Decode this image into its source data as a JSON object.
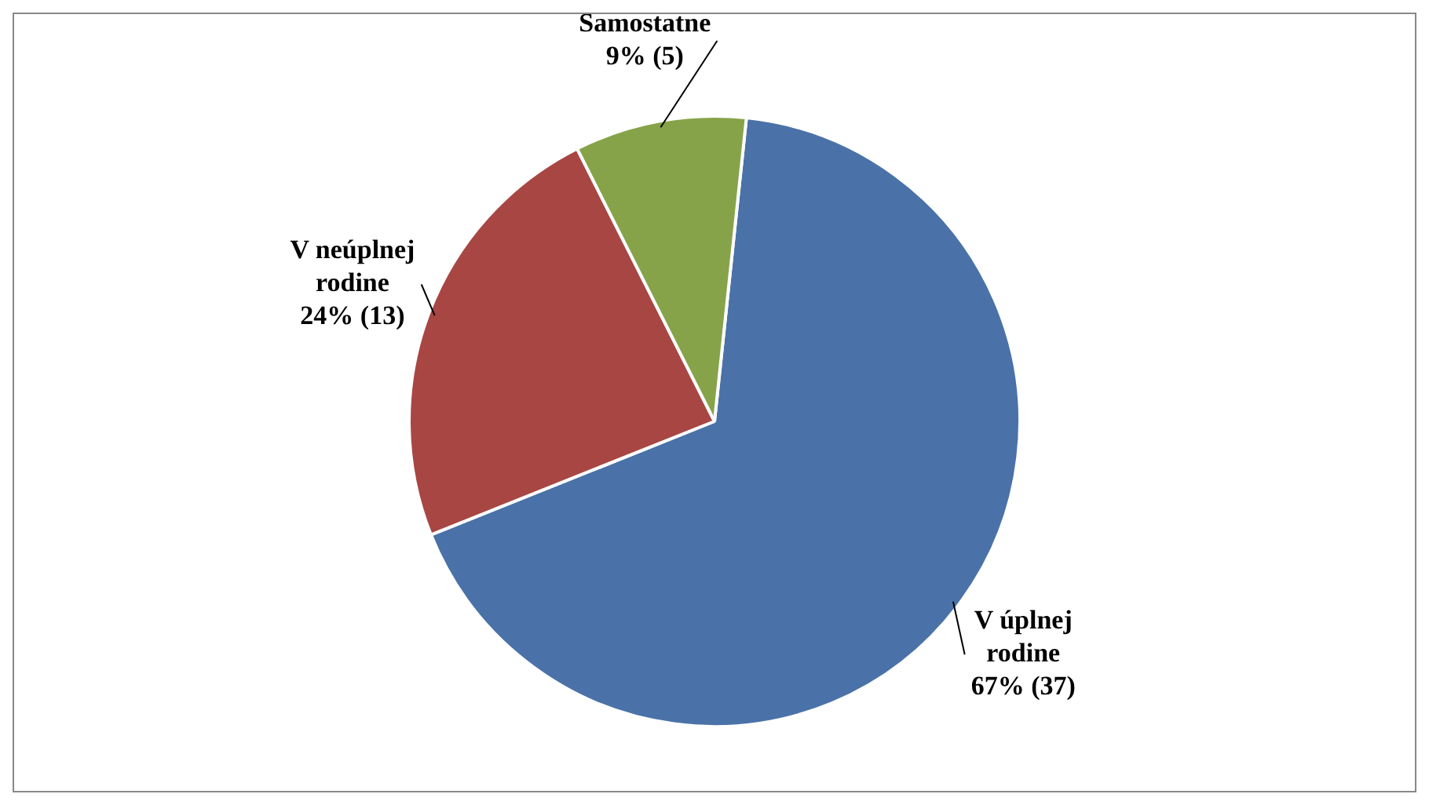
{
  "chart_data": {
    "type": "pie",
    "categories": [
      "V úplnej rodine",
      "V neúplnej rodine",
      "Samostatne"
    ],
    "values": [
      37,
      13,
      5
    ],
    "colors": [
      "#4a72a8",
      "#a84643",
      "#87a34a"
    ],
    "value_labels": [
      "67% (37)",
      "24% (13)",
      "9% (5)"
    ],
    "legend": false
  }
}
